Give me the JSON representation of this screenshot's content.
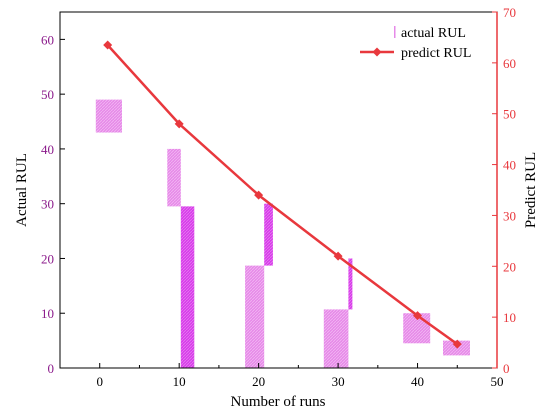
{
  "chart_data": {
    "type": "bar",
    "xlabel": "Number of runs",
    "ylabel_left": "Actual RUL",
    "ylabel_right": "Predict RUL",
    "xlim": [
      -5,
      50
    ],
    "x_ticks": [
      0,
      10,
      20,
      30,
      40,
      50
    ],
    "ylim_left": [
      0,
      65
    ],
    "y_ticks_left": [
      0,
      10,
      20,
      30,
      40,
      50,
      60
    ],
    "ylim_right": [
      0,
      70
    ],
    "y_ticks_right": [
      0,
      10,
      20,
      30,
      40,
      50,
      60,
      70
    ],
    "grid": false,
    "legend_position": "top-right",
    "colors": {
      "left_axis": "#8b1a8b",
      "right_axis": "#e8383d",
      "actual_bar_light": "#e68ae8",
      "actual_bar_dark": "#d83bea",
      "predict_line": "#e8383d"
    },
    "series": [
      {
        "name": "actual RUL",
        "kind": "floating-bar",
        "axis": "left",
        "bars": [
          {
            "x0": -0.5,
            "x1": 2.8,
            "y0": 43,
            "y1": 49,
            "shade": "light"
          },
          {
            "x0": 8.5,
            "x1": 10.2,
            "y0": 29.5,
            "y1": 40,
            "shade": "light"
          },
          {
            "x0": 10.2,
            "x1": 11.9,
            "y0": 0,
            "y1": 29.5,
            "shade": "dark"
          },
          {
            "x0": 18.3,
            "x1": 20.7,
            "y0": 0,
            "y1": 18.7,
            "shade": "light"
          },
          {
            "x0": 20.7,
            "x1": 21.8,
            "y0": 18.7,
            "y1": 30,
            "shade": "dark"
          },
          {
            "x0": 28.2,
            "x1": 31.3,
            "y0": 0,
            "y1": 10.7,
            "shade": "light"
          },
          {
            "x0": 31.3,
            "x1": 31.8,
            "y0": 10.7,
            "y1": 20,
            "shade": "dark"
          },
          {
            "x0": 38.2,
            "x1": 41.6,
            "y0": 4.5,
            "y1": 10,
            "shade": "light"
          },
          {
            "x0": 43.2,
            "x1": 46.6,
            "y0": 2.3,
            "y1": 5,
            "shade": "light"
          }
        ]
      },
      {
        "name": "predict RUL",
        "kind": "line",
        "axis": "right",
        "x": [
          1,
          10,
          20,
          30,
          40,
          45
        ],
        "y": [
          63.5,
          48,
          34,
          22,
          10.3,
          4.7
        ]
      }
    ]
  }
}
